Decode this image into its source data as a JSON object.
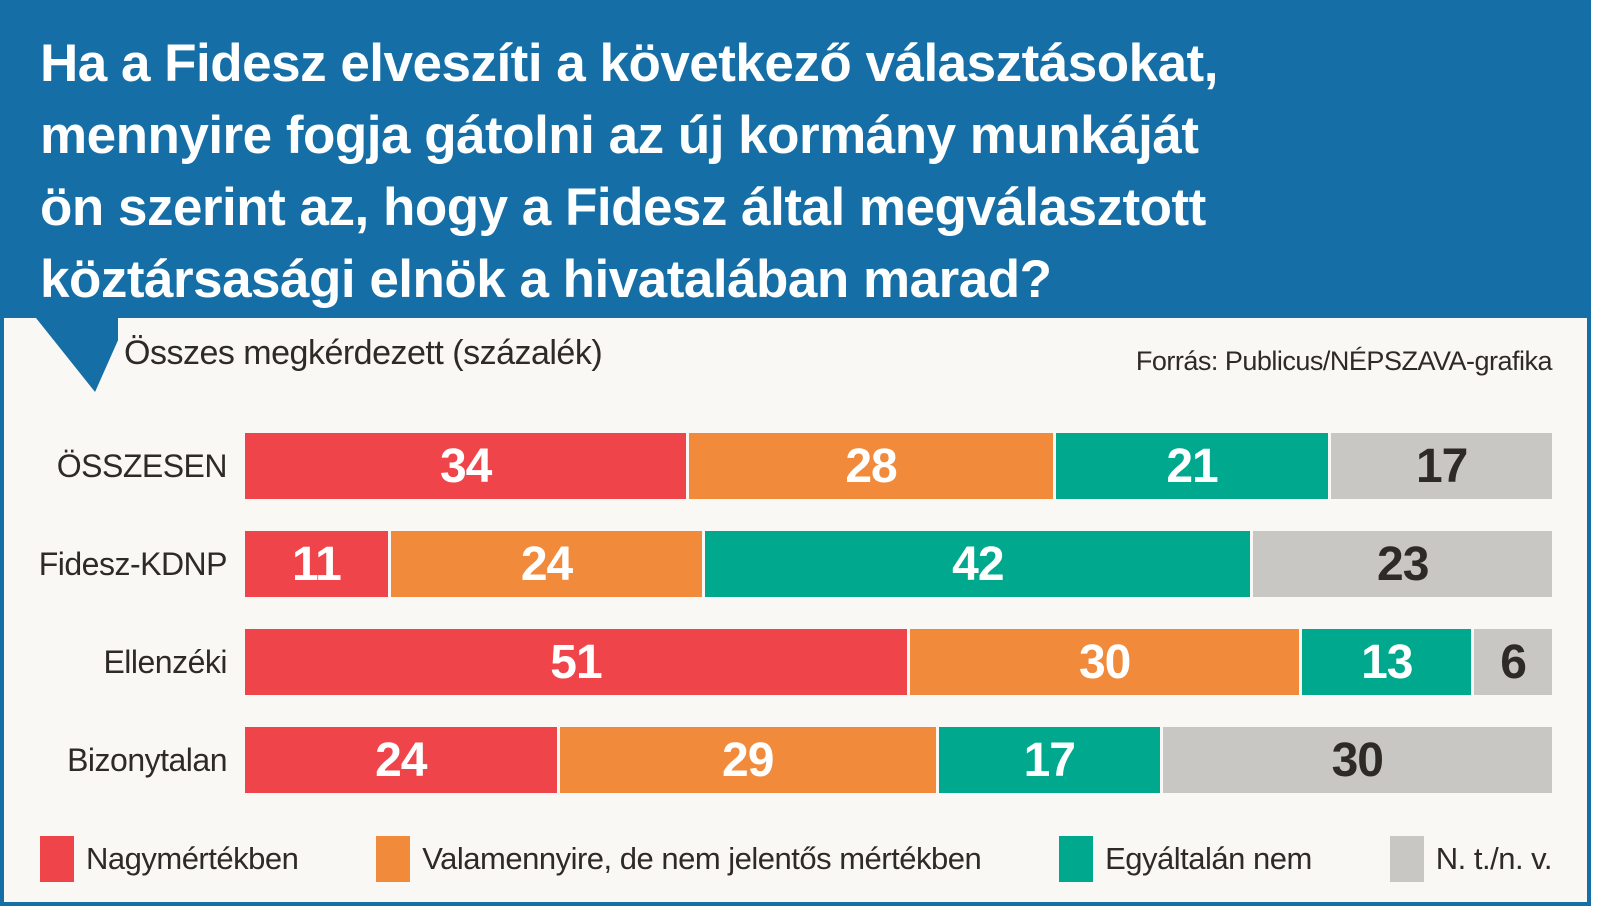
{
  "title": {
    "lines": [
      "Ha a Fidesz elveszíti a következő választásokat,",
      "mennyire fogja gátolni az új kormány munkáját",
      "ön szerint az, hogy a Fidesz által megválasztott",
      "köztársasági elnök a hivatalában marad?"
    ]
  },
  "subtitle": "Összes megkérdezett (százalék)",
  "source": "Forrás: Publicus/NÉPSZAVA-grafika",
  "colors": {
    "blue": "#156fa6",
    "background": "#f9f8f5",
    "dark_text": "#2e2a26",
    "red": "#ef4449",
    "orange": "#f18a3b",
    "teal": "#00a88e",
    "gray": "#c9c7c4"
  },
  "chart_data": {
    "type": "bar",
    "stacked": true,
    "orientation": "horizontal",
    "unit": "percent",
    "xlim": [
      0,
      100
    ],
    "grid": false,
    "legend_position": "bottom",
    "categories": [
      "ÖSSZESEN",
      "Fidesz-KDNP",
      "Ellenzéki",
      "Bizonytalan"
    ],
    "series": [
      {
        "name": "Nagymértékben",
        "color": "#ef4449",
        "label_color": "#ffffff",
        "values": [
          34,
          11,
          51,
          24
        ]
      },
      {
        "name": "Valamennyire, de nem jelentős mértékben",
        "color": "#f18a3b",
        "label_color": "#ffffff",
        "values": [
          28,
          24,
          30,
          29
        ]
      },
      {
        "name": "Egyáltalán nem",
        "color": "#00a88e",
        "label_color": "#ffffff",
        "values": [
          21,
          42,
          13,
          17
        ]
      },
      {
        "name": "N. t./n. v.",
        "color": "#c9c7c4",
        "label_color": "#2e2a26",
        "values": [
          17,
          23,
          6,
          30
        ]
      }
    ]
  },
  "layout": {
    "row_top_start": 433,
    "row_pitch": 98
  }
}
